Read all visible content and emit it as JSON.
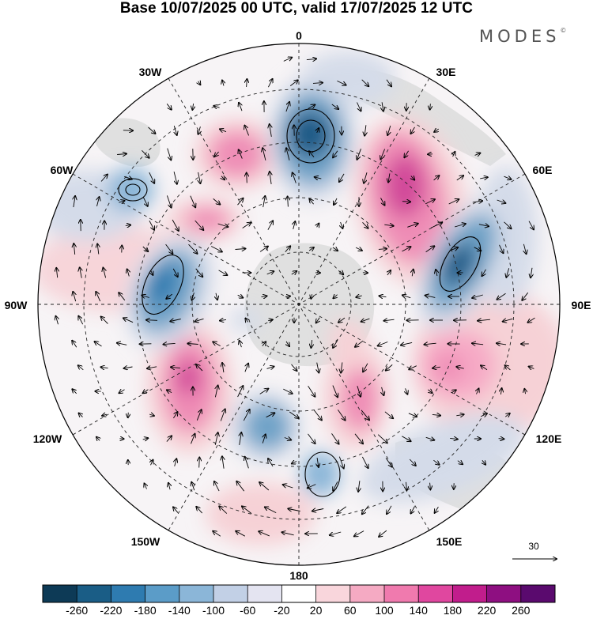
{
  "header": {
    "title": "Base 10/07/2025 00 UTC, valid 17/07/2025 12 UTC",
    "brand": "MODES",
    "brand_mark": "©"
  },
  "map": {
    "projection": "south-polar-stereographic",
    "longitude_labels": {
      "top": "0",
      "top_right": "30E",
      "right_upper": "60E",
      "right": "90E",
      "right_lower": "120E",
      "bottom_right": "150E",
      "bottom": "180",
      "bottom_left": "150W",
      "left_lower": "120W",
      "left": "90W",
      "left_upper": "60W",
      "top_left": "30W"
    },
    "reference_vector": {
      "label": "30"
    },
    "field_colors": {
      "strong_negative": "#1f5a86",
      "negative": "#6fa3c8",
      "weak_negative": "#d4dbe9",
      "weak_positive": "#f6d1d6",
      "positive": "#ef8db6",
      "strong_positive": "#d24a9a",
      "land": "#dcdcdc"
    }
  },
  "colorbar": {
    "ticks": [
      "-260",
      "-220",
      "-180",
      "-140",
      "-100",
      "-60",
      "-20",
      "20",
      "60",
      "100",
      "140",
      "180",
      "220",
      "260"
    ],
    "colors": [
      "#0d3a56",
      "#1a5d86",
      "#2e7bb0",
      "#5b9cc8",
      "#8bb6d8",
      "#c2d0e6",
      "#e4e4f1",
      "#ffffff",
      "#f9d6dc",
      "#f5aac3",
      "#f07aae",
      "#e0479f",
      "#c11d8c",
      "#8e0f81",
      "#5a0a6e"
    ]
  }
}
